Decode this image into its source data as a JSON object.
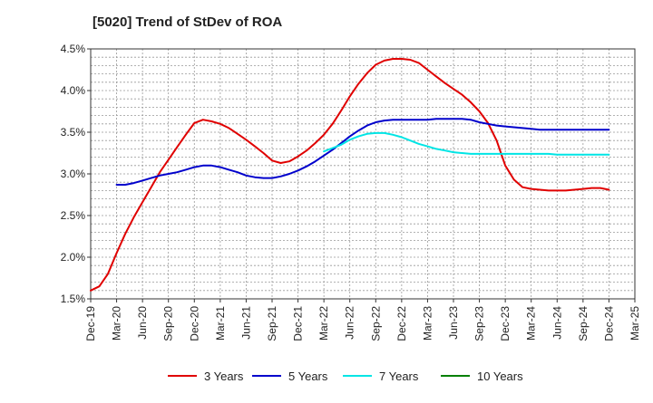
{
  "chart_data": {
    "type": "line",
    "title": "[5020]  Trend of StDev of ROA",
    "xlabel": "",
    "ylabel": "",
    "x_ticks": [
      "Dec-19",
      "Mar-20",
      "Jun-20",
      "Sep-20",
      "Dec-20",
      "Mar-21",
      "Jun-21",
      "Sep-21",
      "Dec-21",
      "Mar-22",
      "Jun-22",
      "Sep-22",
      "Dec-22",
      "Mar-23",
      "Jun-23",
      "Sep-23",
      "Dec-23",
      "Mar-24",
      "Jun-24",
      "Sep-24",
      "Dec-24",
      "Mar-25"
    ],
    "y_ticks": [
      "1.5%",
      "2.0%",
      "2.5%",
      "3.0%",
      "3.5%",
      "4.0%",
      "4.5%"
    ],
    "ylim": [
      1.5,
      4.5
    ],
    "grid": true,
    "legend_position": "bottom",
    "series": [
      {
        "name": "3 Years",
        "color": "#e00000",
        "x": [
          "Dec-19",
          "Jan-20",
          "Feb-20",
          "Mar-20",
          "Apr-20",
          "May-20",
          "Jun-20",
          "Jul-20",
          "Aug-20",
          "Sep-20",
          "Oct-20",
          "Nov-20",
          "Dec-20",
          "Jan-21",
          "Feb-21",
          "Mar-21",
          "Apr-21",
          "May-21",
          "Jun-21",
          "Jul-21",
          "Aug-21",
          "Sep-21",
          "Oct-21",
          "Nov-21",
          "Dec-21",
          "Jan-22",
          "Feb-22",
          "Mar-22",
          "Apr-22",
          "May-22",
          "Jun-22",
          "Jul-22",
          "Aug-22",
          "Sep-22",
          "Oct-22",
          "Nov-22",
          "Dec-22",
          "Jan-23",
          "Feb-23",
          "Mar-23",
          "Apr-23",
          "May-23",
          "Jun-23",
          "Jul-23",
          "Aug-23",
          "Sep-23",
          "Oct-23",
          "Nov-23",
          "Dec-23",
          "Jan-24",
          "Feb-24",
          "Mar-24",
          "Apr-24",
          "May-24",
          "Jun-24",
          "Jul-24",
          "Aug-24",
          "Sep-24",
          "Oct-24",
          "Nov-24",
          "Dec-24"
        ],
        "values": [
          1.6,
          1.65,
          1.8,
          2.05,
          2.28,
          2.48,
          2.66,
          2.84,
          3.02,
          3.17,
          3.32,
          3.47,
          3.61,
          3.65,
          3.63,
          3.6,
          3.55,
          3.48,
          3.41,
          3.33,
          3.25,
          3.16,
          3.13,
          3.15,
          3.21,
          3.28,
          3.37,
          3.47,
          3.6,
          3.76,
          3.93,
          4.08,
          4.21,
          4.31,
          4.36,
          4.38,
          4.38,
          4.37,
          4.33,
          4.25,
          4.17,
          4.09,
          4.02,
          3.95,
          3.86,
          3.75,
          3.61,
          3.4,
          3.1,
          2.93,
          2.84,
          2.82,
          2.81,
          2.8,
          2.8,
          2.8,
          2.81,
          2.82,
          2.83,
          2.83,
          2.81
        ]
      },
      {
        "name": "5 Years",
        "color": "#0000cc",
        "x": [
          "Dec-19",
          "Jan-20",
          "Feb-20",
          "Mar-20",
          "Apr-20",
          "May-20",
          "Jun-20",
          "Jul-20",
          "Aug-20",
          "Sep-20",
          "Oct-20",
          "Nov-20",
          "Dec-20",
          "Jan-21",
          "Feb-21",
          "Mar-21",
          "Apr-21",
          "May-21",
          "Jun-21",
          "Jul-21",
          "Aug-21",
          "Sep-21",
          "Oct-21",
          "Nov-21",
          "Dec-21",
          "Jan-22",
          "Feb-22",
          "Mar-22",
          "Apr-22",
          "May-22",
          "Jun-22",
          "Jul-22",
          "Aug-22",
          "Sep-22",
          "Oct-22",
          "Nov-22",
          "Dec-22",
          "Jan-23",
          "Feb-23",
          "Mar-23",
          "Apr-23",
          "May-23",
          "Jun-23",
          "Jul-23",
          "Aug-23",
          "Sep-23",
          "Oct-23",
          "Nov-23",
          "Dec-23",
          "Jan-24",
          "Feb-24",
          "Mar-24",
          "Apr-24",
          "May-24",
          "Jun-24",
          "Jul-24",
          "Aug-24",
          "Sep-24",
          "Oct-24",
          "Nov-24",
          "Dec-24"
        ],
        "values": [
          null,
          null,
          null,
          2.87,
          2.87,
          2.89,
          2.92,
          2.95,
          2.98,
          3.0,
          3.02,
          3.05,
          3.08,
          3.1,
          3.1,
          3.08,
          3.05,
          3.02,
          2.98,
          2.96,
          2.95,
          2.95,
          2.97,
          3.0,
          3.04,
          3.09,
          3.15,
          3.22,
          3.29,
          3.37,
          3.45,
          3.52,
          3.58,
          3.62,
          3.64,
          3.65,
          3.65,
          3.65,
          3.65,
          3.65,
          3.66,
          3.66,
          3.66,
          3.66,
          3.65,
          3.62,
          3.6,
          3.58,
          3.57,
          3.56,
          3.55,
          3.54,
          3.53,
          3.53,
          3.53,
          3.53,
          3.53,
          3.53,
          3.53,
          3.53,
          3.53
        ]
      },
      {
        "name": "7 Years",
        "color": "#00e5e5",
        "x": [
          "Mar-22",
          "Apr-22",
          "May-22",
          "Jun-22",
          "Jul-22",
          "Aug-22",
          "Sep-22",
          "Oct-22",
          "Nov-22",
          "Dec-22",
          "Jan-23",
          "Feb-23",
          "Mar-23",
          "Apr-23",
          "May-23",
          "Jun-23",
          "Jul-23",
          "Aug-23",
          "Sep-23",
          "Oct-23",
          "Nov-23",
          "Dec-23",
          "Jan-24",
          "Feb-24",
          "Mar-24",
          "Apr-24",
          "May-24",
          "Jun-24",
          "Jul-24",
          "Aug-24",
          "Sep-24",
          "Oct-24",
          "Nov-24",
          "Dec-24"
        ],
        "values": [
          3.27,
          3.31,
          3.35,
          3.41,
          3.45,
          3.48,
          3.49,
          3.49,
          3.47,
          3.44,
          3.4,
          3.36,
          3.33,
          3.3,
          3.28,
          3.26,
          3.25,
          3.24,
          3.24,
          3.24,
          3.24,
          3.24,
          3.24,
          3.24,
          3.24,
          3.24,
          3.24,
          3.23,
          3.23,
          3.23,
          3.23,
          3.23,
          3.23,
          3.23
        ]
      },
      {
        "name": "10 Years",
        "color": "#008000",
        "x": [],
        "values": []
      }
    ]
  }
}
